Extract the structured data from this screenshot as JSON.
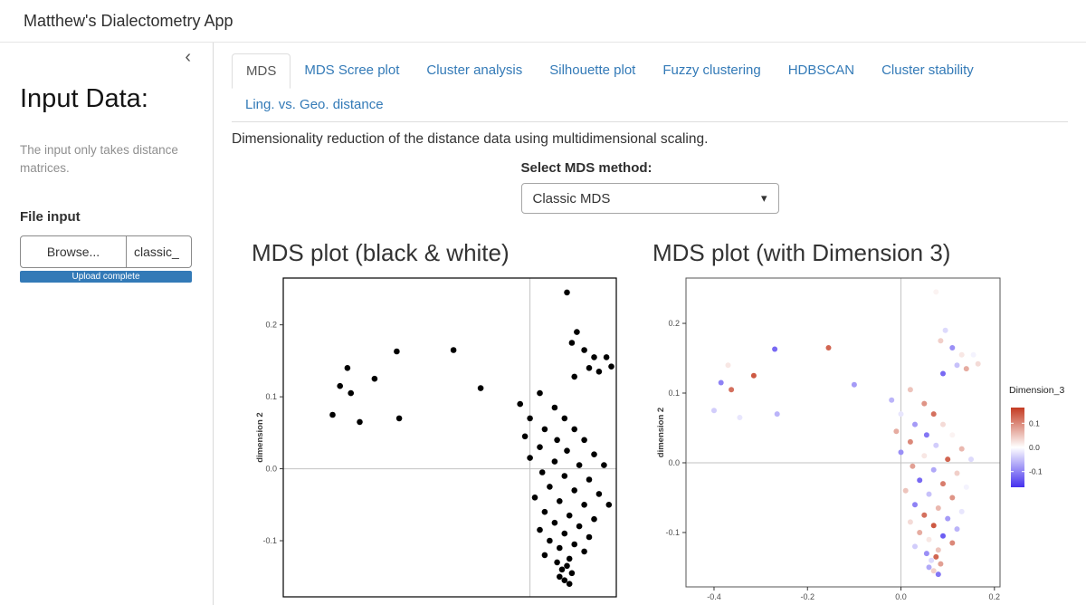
{
  "header": {
    "title": "Matthew's Dialectometry App"
  },
  "sidebar": {
    "collapse_icon": "‹",
    "heading": "Input Data:",
    "description": "The input only takes distance matrices.",
    "file_input": {
      "label": "File input",
      "browse_label": "Browse...",
      "filename": "classic_",
      "progress_text": "Upload complete",
      "progress_percent": 100,
      "progress_color": "#337ab7"
    }
  },
  "tabs": [
    {
      "label": "MDS",
      "active": true
    },
    {
      "label": "MDS Scree plot",
      "active": false
    },
    {
      "label": "Cluster analysis",
      "active": false
    },
    {
      "label": "Silhouette plot",
      "active": false
    },
    {
      "label": "Fuzzy clustering",
      "active": false
    },
    {
      "label": "HDBSCAN",
      "active": false
    },
    {
      "label": "Cluster stability",
      "active": false
    },
    {
      "label": "Ling. vs. Geo. distance",
      "active": false
    }
  ],
  "content": {
    "description": "Dimensionality reduction of the distance data using multidimensional scaling.",
    "mds_method": {
      "label": "Select MDS method:",
      "selected": "Classic MDS",
      "caret_icon": "▾"
    }
  },
  "colors": {
    "link_blue": "#337ab7",
    "border_gray": "#dddddd",
    "progress_blue": "#337ab7"
  },
  "chart_data": [
    {
      "type": "scatter",
      "title": "MDS plot (black & white)",
      "ylabel": "dimension 2",
      "yticks": [
        "0.2",
        "0.1",
        "0.0",
        "-0.1"
      ],
      "xticks": [],
      "xlim": [
        -0.5,
        0.175
      ],
      "ylim": [
        -0.178,
        0.265
      ],
      "point_color": "#000000",
      "grid": "gray reference lines at x=0 and y=0, black panel border",
      "points_note": "each point = [dimension1, dimension2, Dimension_3]",
      "points": [
        [
          -0.4,
          0.075,
          -0.04
        ],
        [
          -0.385,
          0.115,
          -0.1
        ],
        [
          -0.37,
          0.14,
          0.02
        ],
        [
          -0.363,
          0.105,
          0.12
        ],
        [
          -0.345,
          0.065,
          -0.02
        ],
        [
          -0.315,
          0.125,
          0.14
        ],
        [
          -0.27,
          0.163,
          -0.12
        ],
        [
          -0.265,
          0.07,
          -0.06
        ],
        [
          -0.155,
          0.165,
          0.13
        ],
        [
          -0.1,
          0.112,
          -0.08
        ],
        [
          0.075,
          0.245,
          0.01
        ],
        [
          0.095,
          0.19,
          -0.03
        ],
        [
          0.085,
          0.175,
          0.04
        ],
        [
          0.11,
          0.165,
          -0.09
        ],
        [
          0.13,
          0.155,
          0.02
        ],
        [
          0.12,
          0.14,
          -0.05
        ],
        [
          0.14,
          0.135,
          0.07
        ],
        [
          0.155,
          0.155,
          -0.01
        ],
        [
          0.165,
          0.142,
          0.03
        ],
        [
          0.09,
          0.128,
          -0.12
        ],
        [
          0.02,
          0.105,
          0.05
        ],
        [
          -0.02,
          0.09,
          -0.06
        ],
        [
          0.05,
          0.085,
          0.09
        ],
        [
          0.0,
          0.07,
          -0.02
        ],
        [
          0.07,
          0.07,
          0.12
        ],
        [
          0.03,
          0.055,
          -0.08
        ],
        [
          0.09,
          0.055,
          0.03
        ],
        [
          -0.01,
          0.045,
          0.07
        ],
        [
          0.055,
          0.04,
          -0.11
        ],
        [
          0.11,
          0.04,
          0.01
        ],
        [
          0.02,
          0.03,
          0.1
        ],
        [
          0.075,
          0.025,
          -0.04
        ],
        [
          0.13,
          0.02,
          0.06
        ],
        [
          0.0,
          0.015,
          -0.09
        ],
        [
          0.05,
          0.01,
          0.02
        ],
        [
          0.1,
          0.005,
          0.13
        ],
        [
          0.15,
          0.005,
          -0.03
        ],
        [
          0.025,
          -0.005,
          0.08
        ],
        [
          0.07,
          -0.01,
          -0.07
        ],
        [
          0.12,
          -0.015,
          0.04
        ],
        [
          0.04,
          -0.025,
          -0.12
        ],
        [
          0.09,
          -0.03,
          0.11
        ],
        [
          0.14,
          -0.035,
          -0.01
        ],
        [
          0.01,
          -0.04,
          0.05
        ],
        [
          0.06,
          -0.045,
          -0.05
        ],
        [
          0.11,
          -0.05,
          0.09
        ],
        [
          0.16,
          -0.05,
          0.0
        ],
        [
          0.03,
          -0.06,
          -0.1
        ],
        [
          0.08,
          -0.065,
          0.06
        ],
        [
          0.13,
          -0.07,
          -0.02
        ],
        [
          0.05,
          -0.075,
          0.12
        ],
        [
          0.1,
          -0.08,
          -0.08
        ],
        [
          0.02,
          -0.085,
          0.03
        ],
        [
          0.07,
          -0.09,
          0.14
        ],
        [
          0.12,
          -0.095,
          -0.06
        ],
        [
          0.04,
          -0.1,
          0.07
        ],
        [
          0.09,
          -0.105,
          -0.13
        ],
        [
          0.06,
          -0.11,
          0.02
        ],
        [
          0.11,
          -0.115,
          0.1
        ],
        [
          0.03,
          -0.12,
          -0.04
        ],
        [
          0.08,
          -0.125,
          0.05
        ],
        [
          0.055,
          -0.13,
          -0.09
        ],
        [
          0.075,
          -0.135,
          0.13
        ],
        [
          0.065,
          -0.14,
          -0.03
        ],
        [
          0.085,
          -0.145,
          0.08
        ],
        [
          0.06,
          -0.15,
          -0.07
        ],
        [
          0.07,
          -0.155,
          0.04
        ],
        [
          0.08,
          -0.16,
          -0.11
        ]
      ]
    },
    {
      "type": "scatter",
      "title": "MDS plot (with Dimension 3)",
      "ylabel": "dimension 2",
      "yticks": [
        "0.2",
        "0.1",
        "0.0",
        "-0.1"
      ],
      "xticks": [
        "-0.4",
        "-0.2",
        "0.0",
        "0.2"
      ],
      "xlim": [
        -0.46,
        0.212
      ],
      "ylim": [
        -0.178,
        0.265
      ],
      "points_source": "chart_data.0.points (same MDS coordinates; colored by third value = Dimension_3)",
      "color_scale": {
        "high": "#c43b22",
        "mid": "#ffffff",
        "low": "#4531ee",
        "limits": [
          -0.165,
          0.165
        ]
      },
      "legend": {
        "title": "Dimension_3",
        "ticks": [
          "0.1",
          "0.0",
          "-0.1"
        ],
        "position": "right"
      },
      "grid": "gray reference lines at x=0 and y=0, gray panel border"
    }
  ]
}
